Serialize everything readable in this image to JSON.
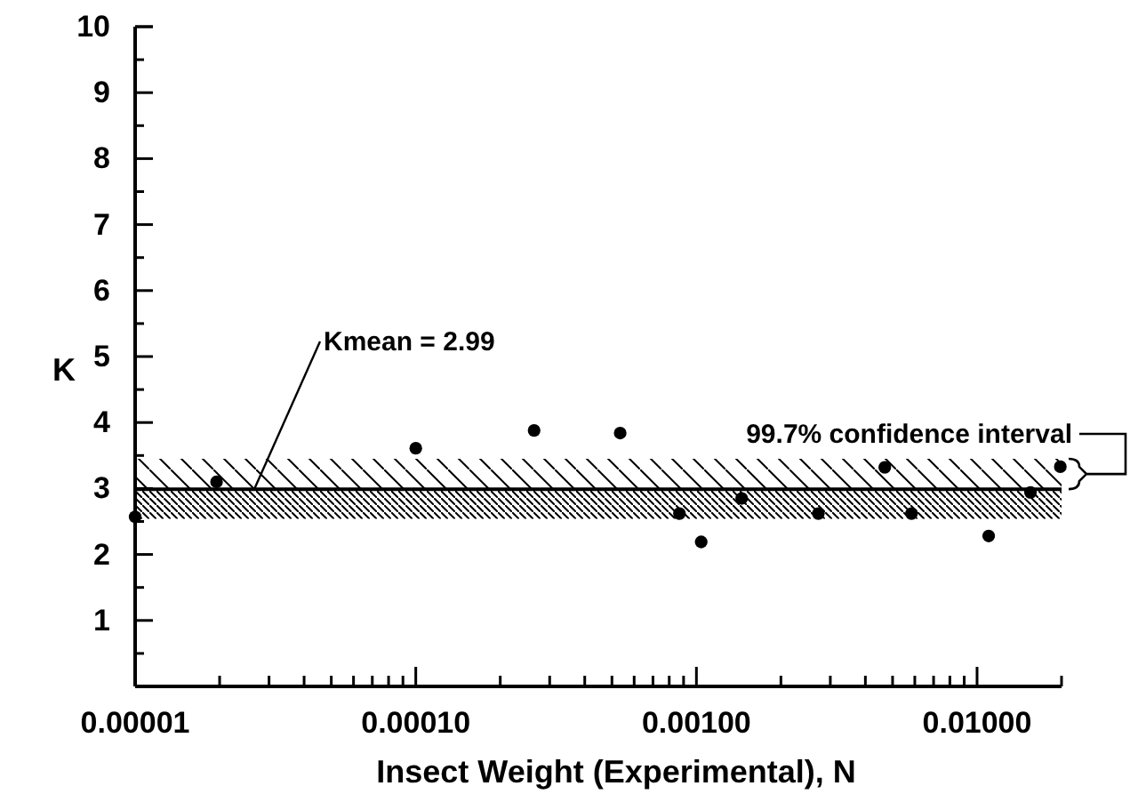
{
  "chart_data": {
    "type": "scatter",
    "xlabel": "Insect Weight (Experimental), N",
    "ylabel": "K",
    "log": "x",
    "marker": "circle",
    "grid": false,
    "x": [
      1e-05,
      1.95e-05,
      0.0001,
      0.000264,
      0.000535,
      0.00087,
      0.00104,
      0.00145,
      0.00272,
      0.00469,
      0.00584,
      0.011,
      0.0155,
      0.0198
    ],
    "values": [
      2.57,
      3.1,
      3.61,
      3.88,
      3.84,
      2.62,
      2.19,
      2.85,
      2.62,
      3.32,
      2.62,
      2.28,
      2.94,
      3.33
    ],
    "color": "#000000",
    "xlim": [
      1e-05,
      0.02
    ],
    "xticks": [
      {
        "value": 1e-05,
        "label": "0.00001"
      },
      {
        "value": 2e-05,
        "label": null
      },
      {
        "value": 3e-05,
        "label": null
      },
      {
        "value": 4e-05,
        "label": null
      },
      {
        "value": 5e-05,
        "label": null
      },
      {
        "value": 6e-05,
        "label": null
      },
      {
        "value": 7e-05,
        "label": null
      },
      {
        "value": 8e-05,
        "label": null
      },
      {
        "value": 9e-05,
        "label": null
      },
      {
        "value": 0.0001,
        "label": "0.00010"
      },
      {
        "value": 0.0002,
        "label": null
      },
      {
        "value": 0.0003,
        "label": null
      },
      {
        "value": 0.0004,
        "label": null
      },
      {
        "value": 0.0005,
        "label": null
      },
      {
        "value": 0.0006,
        "label": null
      },
      {
        "value": 0.0007,
        "label": null
      },
      {
        "value": 0.0008,
        "label": null
      },
      {
        "value": 0.0009,
        "label": null
      },
      {
        "value": 0.001,
        "label": "0.00100"
      },
      {
        "value": 0.002,
        "label": null
      },
      {
        "value": 0.003,
        "label": null
      },
      {
        "value": 0.004,
        "label": null
      },
      {
        "value": 0.005,
        "label": null
      },
      {
        "value": 0.006,
        "label": null
      },
      {
        "value": 0.007,
        "label": null
      },
      {
        "value": 0.008,
        "label": null
      },
      {
        "value": 0.009,
        "label": null
      },
      {
        "value": 0.01,
        "label": "0.01000"
      },
      {
        "value": 0.02,
        "label": null
      }
    ],
    "ylim": [
      0,
      10
    ],
    "yticks": [
      {
        "value": 0.5,
        "label": null
      },
      1,
      {
        "value": 1.5,
        "label": null
      },
      2,
      {
        "value": 2.5,
        "label": null
      },
      3,
      {
        "value": 3.5,
        "label": null
      },
      4,
      {
        "value": 4.5,
        "label": null
      },
      5,
      {
        "value": 5.5,
        "label": null
      },
      6,
      {
        "value": 6.5,
        "label": null
      },
      7,
      {
        "value": 7.5,
        "label": null
      },
      8,
      {
        "value": 8.5,
        "label": null
      },
      9,
      {
        "value": 9.5,
        "label": null
      },
      10
    ],
    "ref_lines": [
      {
        "axis": "y",
        "value": 2.99,
        "label": "Kmean = 2.99",
        "color": "#000000",
        "line_style": "solid"
      }
    ],
    "bands": [
      {
        "axis": "y",
        "from": 2.99,
        "to": 3.45,
        "label": "99.7% confidence interval",
        "color": "#000000"
      },
      {
        "axis": "y",
        "from": 2.54,
        "to": 2.99,
        "color": "#000000"
      }
    ]
  }
}
